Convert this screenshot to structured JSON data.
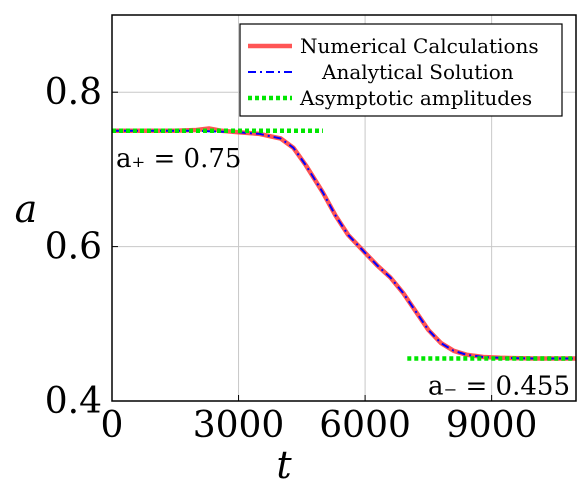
{
  "chart_data": {
    "type": "line",
    "xlabel": "t",
    "ylabel": "a",
    "xlim": [
      0,
      11000
    ],
    "ylim": [
      0.4,
      0.9
    ],
    "xticks": [
      0,
      3000,
      6000,
      9000
    ],
    "yticks": [
      0.4,
      0.6,
      0.8
    ],
    "xtick_labels": [
      "0",
      "3000",
      "6000",
      "9000"
    ],
    "ytick_labels": [
      "0.4",
      "0.6",
      "0.8"
    ],
    "grid": true,
    "legend_position": "top-right",
    "series": [
      {
        "name": "Numerical Calculations",
        "color": "#ff5555",
        "style": "solid",
        "x": [
          0,
          500,
          1000,
          1500,
          2000,
          2300,
          2600,
          3000,
          3500,
          4000,
          4300,
          4600,
          5000,
          5300,
          5600,
          6000,
          6300,
          6600,
          6900,
          7200,
          7500,
          7800,
          8100,
          8400,
          8800,
          9200,
          10000,
          11000
        ],
        "y": [
          0.75,
          0.75,
          0.75,
          0.75,
          0.751,
          0.753,
          0.75,
          0.748,
          0.746,
          0.74,
          0.728,
          0.705,
          0.67,
          0.64,
          0.615,
          0.592,
          0.575,
          0.56,
          0.54,
          0.516,
          0.492,
          0.475,
          0.465,
          0.46,
          0.457,
          0.456,
          0.455,
          0.455
        ]
      },
      {
        "name": "Analytical Solution",
        "color": "#0000ff",
        "style": "dashdot",
        "x": [
          0,
          500,
          1000,
          1500,
          2000,
          2500,
          3000,
          3500,
          4000,
          4300,
          4600,
          5000,
          5300,
          5600,
          6000,
          6300,
          6600,
          6900,
          7200,
          7500,
          7800,
          8100,
          8400,
          8800,
          9200,
          10000,
          11000
        ],
        "y": [
          0.75,
          0.75,
          0.75,
          0.75,
          0.75,
          0.749,
          0.748,
          0.746,
          0.74,
          0.728,
          0.705,
          0.67,
          0.64,
          0.615,
          0.592,
          0.575,
          0.56,
          0.54,
          0.516,
          0.492,
          0.475,
          0.465,
          0.46,
          0.457,
          0.456,
          0.455,
          0.455
        ]
      },
      {
        "name": "Asymptotic amplitudes",
        "color": "#00e600",
        "style": "dotted",
        "segments": [
          {
            "x": [
              0,
              5000
            ],
            "y": [
              0.75,
              0.75
            ]
          },
          {
            "x": [
              7000,
              11000
            ],
            "y": [
              0.455,
              0.455
            ]
          }
        ]
      }
    ],
    "annotations": [
      {
        "text": "a₊ = 0.75",
        "x": 0,
        "y": 0.75,
        "anchor": "below-left"
      },
      {
        "text": "a₋ = 0.455",
        "x": 11000,
        "y": 0.455,
        "anchor": "below-right"
      }
    ]
  }
}
